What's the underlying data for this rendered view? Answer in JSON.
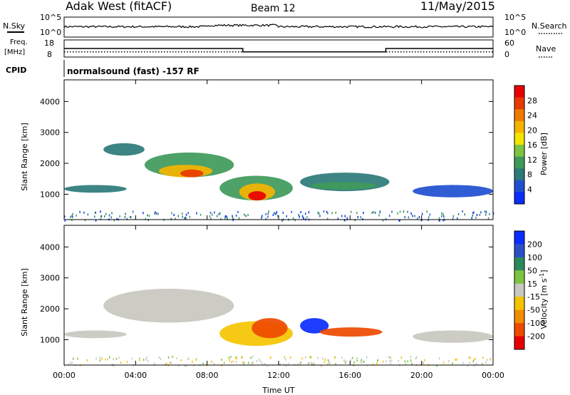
{
  "header": {
    "site": "Adak West (fitACF)",
    "beam": "Beam 12",
    "date": "11/May/2015"
  },
  "panels": {
    "nsky_label": "N.Sky",
    "nsearch_label": "N.Search",
    "noise_ticks": [
      "10^5",
      "10^0"
    ],
    "freq_label": "Freq.",
    "freq_unit": "[MHz]",
    "freq_ticks": [
      "18",
      "8"
    ],
    "nave_label": "Nave",
    "nave_ticks": [
      "60",
      "0"
    ],
    "cpid_label": "CPID",
    "cpid_text": "normalsound (fast) -157 RF"
  },
  "chart_data": [
    {
      "type": "line",
      "name": "noise",
      "x": [
        "00:00",
        "04:00",
        "08:00",
        "12:00",
        "16:00",
        "20:00",
        "00:00"
      ],
      "series_names": [
        "N.Sky",
        "N.Search"
      ],
      "ylim_log10": [
        0,
        5
      ],
      "sky_level_log10": 2.6
    },
    {
      "type": "line",
      "name": "frequency-nave",
      "freq_mhz": [
        {
          "t": 0.0,
          "v": 13.0
        },
        {
          "t": 10.0,
          "v": 13.0
        },
        {
          "t": 10.0,
          "v": 11.0
        },
        {
          "t": 18.0,
          "v": 11.0
        },
        {
          "t": 18.0,
          "v": 13.0
        },
        {
          "t": 24.0,
          "v": 13.0
        }
      ],
      "freq_ylim": [
        8,
        18
      ],
      "nave_level": 18,
      "nave_ylim": [
        0,
        60
      ]
    },
    {
      "type": "heatmap",
      "name": "power",
      "ylabel": "Slant Range [km]",
      "xlabel": "Time UT",
      "x_ticks": [
        "00:00",
        "04:00",
        "08:00",
        "12:00",
        "16:00",
        "20:00",
        "00:00"
      ],
      "xlim_hours": [
        0,
        24
      ],
      "y_ticks": [
        1000,
        2000,
        3000,
        4000
      ],
      "ylim_km": [
        180,
        4700
      ],
      "colorbar_label": "Power [dB]",
      "colorbar_ticks": [
        4,
        8,
        12,
        16,
        20,
        24,
        28
      ],
      "colors": [
        "#0a2cff",
        "#1f4fd0",
        "#2c7a7a",
        "#3f9a5a",
        "#7cc542",
        "#f2e600",
        "#f5b400",
        "#f07a00",
        "#e83a00",
        "#e80000"
      ],
      "regions": [
        {
          "t0": 0.0,
          "t1": 3.5,
          "r0": 1050,
          "r1": 1300,
          "level": 2
        },
        {
          "t0": 2.2,
          "t1": 4.5,
          "r0": 2250,
          "r1": 2650,
          "level": 2
        },
        {
          "t0": 4.5,
          "t1": 9.5,
          "r0": 1550,
          "r1": 2350,
          "level": 3
        },
        {
          "t0": 5.3,
          "t1": 8.3,
          "r0": 1550,
          "r1": 1950,
          "level": 6
        },
        {
          "t0": 6.5,
          "t1": 7.8,
          "r0": 1550,
          "r1": 1800,
          "level": 8
        },
        {
          "t0": 8.7,
          "t1": 12.8,
          "r0": 800,
          "r1": 1600,
          "level": 3
        },
        {
          "t0": 9.8,
          "t1": 11.8,
          "r0": 800,
          "r1": 1350,
          "level": 6
        },
        {
          "t0": 10.3,
          "t1": 11.3,
          "r0": 800,
          "r1": 1100,
          "level": 9
        },
        {
          "t0": 13.2,
          "t1": 18.2,
          "r0": 1100,
          "r1": 1700,
          "level": 2
        },
        {
          "t0": 13.8,
          "t1": 17.5,
          "r0": 1150,
          "r1": 1400,
          "level": 3
        },
        {
          "t0": 19.5,
          "t1": 24.0,
          "r0": 900,
          "r1": 1300,
          "level": 1
        }
      ]
    },
    {
      "type": "heatmap",
      "name": "velocity",
      "ylabel": "Slant Range [km]",
      "xlabel": "Time UT",
      "x_ticks": [
        "00:00",
        "04:00",
        "08:00",
        "12:00",
        "16:00",
        "20:00",
        "00:00"
      ],
      "xlim_hours": [
        0,
        24
      ],
      "y_ticks": [
        1000,
        2000,
        3000,
        4000
      ],
      "ylim_km": [
        180,
        4700
      ],
      "colorbar_label": "Velocity",
      "colorbar_unit": "[m s",
      "colorbar_unit_sup": "-1",
      "colorbar_unit_close": "]",
      "colorbar_ticks": [
        200,
        100,
        50,
        15,
        -15,
        -50,
        -100,
        -200
      ],
      "colors": [
        "#0a2cff",
        "#2c4fc8",
        "#2c8a5a",
        "#7cc542",
        "#c8c8c0",
        "#f5c400",
        "#f28c00",
        "#ee4a00",
        "#e80000"
      ],
      "regions": [
        {
          "t0": 0.0,
          "t1": 3.5,
          "r0": 1050,
          "r1": 1300,
          "level": 4
        },
        {
          "t0": 2.2,
          "t1": 9.5,
          "r0": 1550,
          "r1": 2650,
          "level": 4
        },
        {
          "t0": 8.7,
          "t1": 12.8,
          "r0": 800,
          "r1": 1600,
          "level": 5
        },
        {
          "t0": 10.5,
          "t1": 12.5,
          "r0": 1050,
          "r1": 1700,
          "level": 7
        },
        {
          "t0": 13.2,
          "t1": 14.8,
          "r0": 1200,
          "r1": 1700,
          "level": 0
        },
        {
          "t0": 14.3,
          "t1": 17.8,
          "r0": 1100,
          "r1": 1400,
          "level": 7
        },
        {
          "t0": 19.5,
          "t1": 24.0,
          "r0": 900,
          "r1": 1300,
          "level": 4
        }
      ]
    }
  ]
}
